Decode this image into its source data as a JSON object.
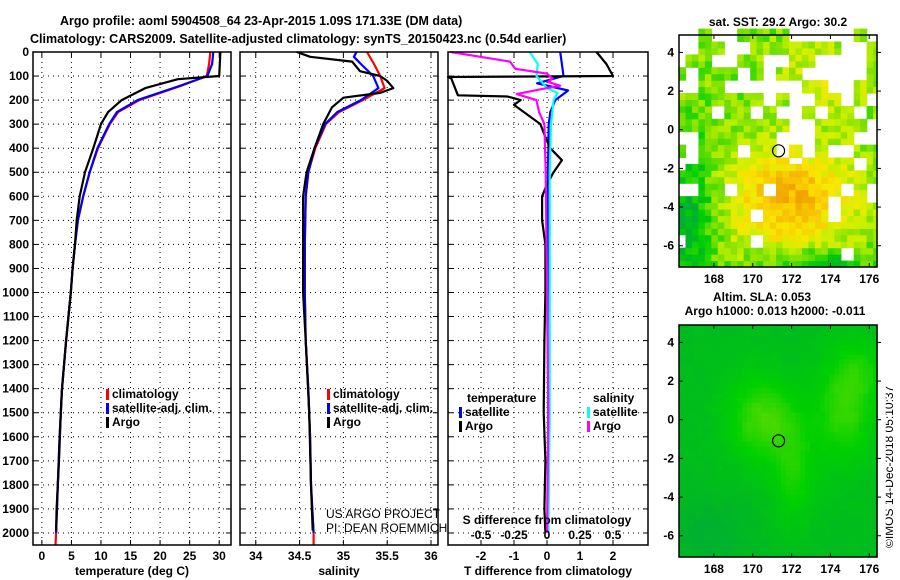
{
  "title": {
    "line1": "Argo profile: aoml 5904508_64 23-Apr-2015 1.09S 171.33E (DM data)",
    "line2": "Climatology: CARS2009. Satellite-adjusted climatology: synTS_20150423.nc (0.54d earlier)"
  },
  "credit": {
    "line1": "US ARGO PROJECT",
    "line2": "PI: DEAN ROEMMICH"
  },
  "watermark": "©IMOS 14-Dec-2018 05:10:37",
  "colors": {
    "climatology": "#ff0000",
    "satellite": "#0000ff",
    "argo": "#000000",
    "sal_satellite": "#00ffff",
    "sal_argo": "#ff00ff"
  },
  "chart_data": [
    {
      "type": "line",
      "id": "temperature",
      "xlabel": "temperature (deg C)",
      "ylabel": "",
      "xlim": [
        -1.5,
        32
      ],
      "ylim": [
        2050,
        0
      ],
      "xticks": [
        0,
        5,
        10,
        15,
        20,
        25,
        30
      ],
      "yticks": [
        0,
        100,
        200,
        300,
        400,
        500,
        600,
        700,
        800,
        900,
        1000,
        1100,
        1200,
        1300,
        1400,
        1500,
        1600,
        1700,
        1800,
        1900,
        2000
      ],
      "grid": true,
      "legend": {
        "placement": "lower-center",
        "entries": [
          "climatology",
          "satellite-adj. clim.",
          "Argo"
        ]
      },
      "series": [
        {
          "name": "climatology",
          "color": "#ff0000",
          "depth": [
            0,
            50,
            100,
            142,
            200,
            250,
            300,
            400,
            500,
            600,
            700,
            800,
            900,
            1000,
            1200,
            1400,
            1600,
            1800,
            2000,
            2050
          ],
          "values": [
            28.5,
            28.3,
            27.9,
            23.4,
            16.5,
            12.9,
            11.5,
            9.5,
            8.1,
            7.0,
            6.1,
            5.6,
            5.2,
            4.9,
            4.1,
            3.4,
            3.0,
            2.7,
            2.4,
            2.3
          ]
        },
        {
          "name": "satellite-adj. clim.",
          "color": "#0000ff",
          "depth": [
            0,
            50,
            100,
            142,
            200,
            250,
            300,
            400,
            500,
            600,
            700,
            800,
            900,
            1000,
            1200,
            1400,
            1600,
            1800,
            2000
          ],
          "values": [
            29.0,
            28.8,
            28.0,
            23.2,
            16.2,
            12.7,
            11.4,
            9.4,
            8.1,
            7.0,
            6.1,
            5.6,
            5.2,
            4.9,
            4.1,
            3.4,
            3.0,
            2.7,
            2.4
          ]
        },
        {
          "name": "Argo",
          "color": "#000000",
          "depth": [
            0,
            50,
            100,
            113,
            150,
            200,
            250,
            300,
            400,
            500,
            600,
            700,
            800,
            900,
            1000,
            1200,
            1400,
            1500,
            1700,
            1900,
            1990
          ],
          "values": [
            30.2,
            30.1,
            30.0,
            23.0,
            17.5,
            13.5,
            11.2,
            10.0,
            8.7,
            7.3,
            6.4,
            5.9,
            5.6,
            5.2,
            4.9,
            4.1,
            3.4,
            3.2,
            2.9,
            2.5,
            2.4
          ]
        }
      ]
    },
    {
      "type": "line",
      "id": "salinity",
      "xlabel": "salinity",
      "ylabel": "",
      "xlim": [
        33.82,
        36.08
      ],
      "ylim": [
        2050,
        0
      ],
      "xticks": [
        34,
        34.5,
        35,
        35.5,
        36
      ],
      "grid": true,
      "legend": {
        "placement": "lower-right",
        "entries": [
          "climatology",
          "satellite-adj. clim.",
          "Argo"
        ]
      },
      "series": [
        {
          "name": "climatology",
          "color": "#ff0000",
          "depth": [
            0,
            50,
            100,
            150,
            200,
            250,
            300,
            400,
            500,
            600,
            800,
            1000,
            1200,
            1400,
            1600,
            1800,
            2000,
            2050
          ],
          "values": [
            35.27,
            35.35,
            35.42,
            35.47,
            35.22,
            34.95,
            34.8,
            34.68,
            34.6,
            34.57,
            34.56,
            34.56,
            34.57,
            34.6,
            34.62,
            34.63,
            34.66,
            34.66
          ]
        },
        {
          "name": "satellite-adj. clim.",
          "color": "#0000ff",
          "depth": [
            0,
            20,
            50,
            100,
            150,
            200,
            250,
            300,
            400,
            500,
            600,
            800,
            1000,
            1200,
            1400,
            1600,
            1800,
            2000
          ],
          "values": [
            35.15,
            35.12,
            35.2,
            35.34,
            35.4,
            35.2,
            34.93,
            34.79,
            34.67,
            34.6,
            34.57,
            34.56,
            34.56,
            34.57,
            34.6,
            34.62,
            34.63,
            34.66
          ]
        },
        {
          "name": "Argo",
          "color": "#000000",
          "depth": [
            0,
            20,
            40,
            80,
            100,
            120,
            150,
            170,
            190,
            230,
            300,
            400,
            500,
            600,
            800,
            1000,
            1200,
            1500,
            1800,
            1990
          ],
          "values": [
            34.47,
            34.62,
            35.1,
            35.19,
            35.42,
            35.5,
            35.57,
            35.42,
            35.0,
            34.87,
            34.77,
            34.67,
            34.58,
            34.54,
            34.54,
            34.54,
            34.57,
            34.61,
            34.63,
            34.65
          ]
        }
      ]
    },
    {
      "type": "line",
      "id": "difference",
      "xlabel": "T difference from climatology",
      "x2label": "S difference from climatology",
      "xlim": [
        -3,
        3.06
      ],
      "ylim": [
        2050,
        0
      ],
      "xticks": [
        -2,
        -1,
        0,
        1,
        2
      ],
      "x2ticks": [
        -0.5,
        -0.25,
        0,
        0.25,
        0.5
      ],
      "x2ticklabels": [
        "-0.5",
        "-0.25",
        "0",
        "0.25",
        "0.5"
      ],
      "grid": true,
      "legend": {
        "placement": "lower",
        "temperature_title": "temperature",
        "salinity_title": "salinity",
        "entries": [
          "satellite",
          "Argo",
          "satellite",
          "Argo"
        ]
      },
      "series": [
        {
          "name": "T satellite",
          "axis": "T",
          "color": "#0000ff",
          "depth": [
            0,
            50,
            100,
            130,
            160,
            200,
            250,
            300,
            500,
            1000,
            1500,
            2000
          ],
          "values": [
            0.4,
            0.45,
            0.5,
            -0.3,
            0.64,
            0.25,
            0.1,
            0.05,
            0.03,
            0.03,
            0.04,
            0.03
          ]
        },
        {
          "name": "T Argo",
          "axis": "T",
          "color": "#000000",
          "depth": [
            0,
            50,
            100,
            104,
            110,
            180,
            185,
            200,
            220,
            250,
            300,
            350,
            400,
            450,
            500,
            550,
            600,
            700,
            800,
            1000,
            1200,
            1500,
            1700,
            1900,
            2000
          ],
          "values": [
            1.5,
            1.8,
            2.0,
            -3.0,
            -2.9,
            -2.7,
            -1.2,
            -0.8,
            -1.0,
            -0.7,
            -0.2,
            -0.06,
            0.1,
            0.45,
            0.2,
            0.0,
            -0.15,
            -0.15,
            -0.05,
            -0.05,
            -0.08,
            -0.1,
            -0.05,
            -0.08,
            -0.05
          ]
        },
        {
          "name": "S satellite",
          "axis": "S",
          "color": "#00ffff",
          "depth": [
            0,
            50,
            100,
            150,
            170,
            200,
            300,
            500,
            1000,
            1500,
            2000
          ],
          "values": [
            -0.13,
            -0.07,
            -0.08,
            0.0,
            0.08,
            0.05,
            0.03,
            0.02,
            0.02,
            0.02,
            0.01
          ]
        },
        {
          "name": "S Argo",
          "axis": "S",
          "color": "#ff00ff",
          "depth": [
            0,
            40,
            70,
            90,
            110,
            125,
            140,
            155,
            175,
            200,
            250,
            300,
            500,
            1000,
            1500,
            2000
          ],
          "values": [
            -0.73,
            -0.28,
            -0.24,
            0.0,
            0.04,
            0.01,
            0.1,
            -0.05,
            -0.23,
            -0.08,
            -0.06,
            -0.02,
            -0.01,
            0.0,
            0.01,
            0.0
          ]
        }
      ]
    },
    {
      "type": "heatmap",
      "id": "sst-map",
      "title": "sat. SST: 29.2 Argo: 30.2",
      "xlim": [
        166.2,
        176.4
      ],
      "ylim": [
        -7.1,
        4.9
      ],
      "xticks": [
        168,
        170,
        172,
        174,
        176
      ],
      "yticks": [
        4,
        2,
        0,
        -2,
        -4,
        -6
      ],
      "argo_position": {
        "lon": 171.33,
        "lat": -1.09
      }
    },
    {
      "type": "heatmap",
      "id": "sla-map",
      "title": "Altim. SLA: 0.053",
      "subtitle": "Argo h1000: 0.013 h2000: -0.011",
      "xlim": [
        166.2,
        176.4
      ],
      "ylim": [
        -7.1,
        4.9
      ],
      "xticks": [
        168,
        170,
        172,
        174,
        176
      ],
      "yticks": [
        4,
        2,
        0,
        -2,
        -4,
        -6
      ],
      "argo_position": {
        "lon": 171.33,
        "lat": -1.09
      }
    }
  ]
}
